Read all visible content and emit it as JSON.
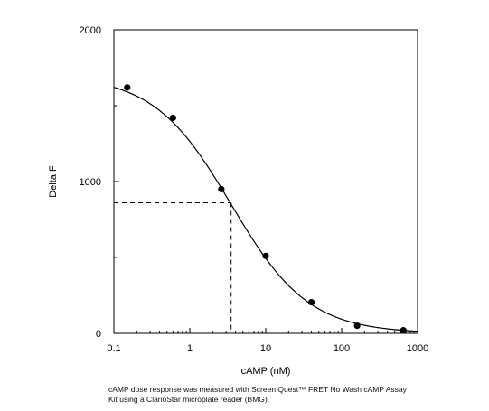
{
  "chart_data": {
    "type": "scatter",
    "xlabel": "cAMP (nM)",
    "ylabel": "Delta F",
    "xscale": "log",
    "xlim": [
      0.1,
      1000
    ],
    "ylim": [
      0,
      2000
    ],
    "x_ticks": [
      "0.1",
      "1",
      "10",
      "100",
      "1000"
    ],
    "y_ticks": [
      "0",
      "1000",
      "2000"
    ],
    "series": [
      {
        "x": [
          0.15,
          0.6,
          2.6,
          10,
          40,
          160,
          650
        ],
        "y": [
          1620,
          1420,
          950,
          510,
          205,
          50,
          20
        ]
      }
    ],
    "fit_curve": {
      "model": "4-parameter logistic",
      "top": 1700,
      "bottom": 0,
      "ec50": 3.5,
      "hill": 0.85
    },
    "ec50_guide": {
      "x": 3.5,
      "y": 860,
      "style": "dashed"
    },
    "grid": false
  },
  "caption": {
    "line1": "cAMP dose response was measured with Screen Quest™ FRET No Wash cAMP Assay",
    "line2": "Kit using a ClarioStar microplate reader (BMG)."
  }
}
